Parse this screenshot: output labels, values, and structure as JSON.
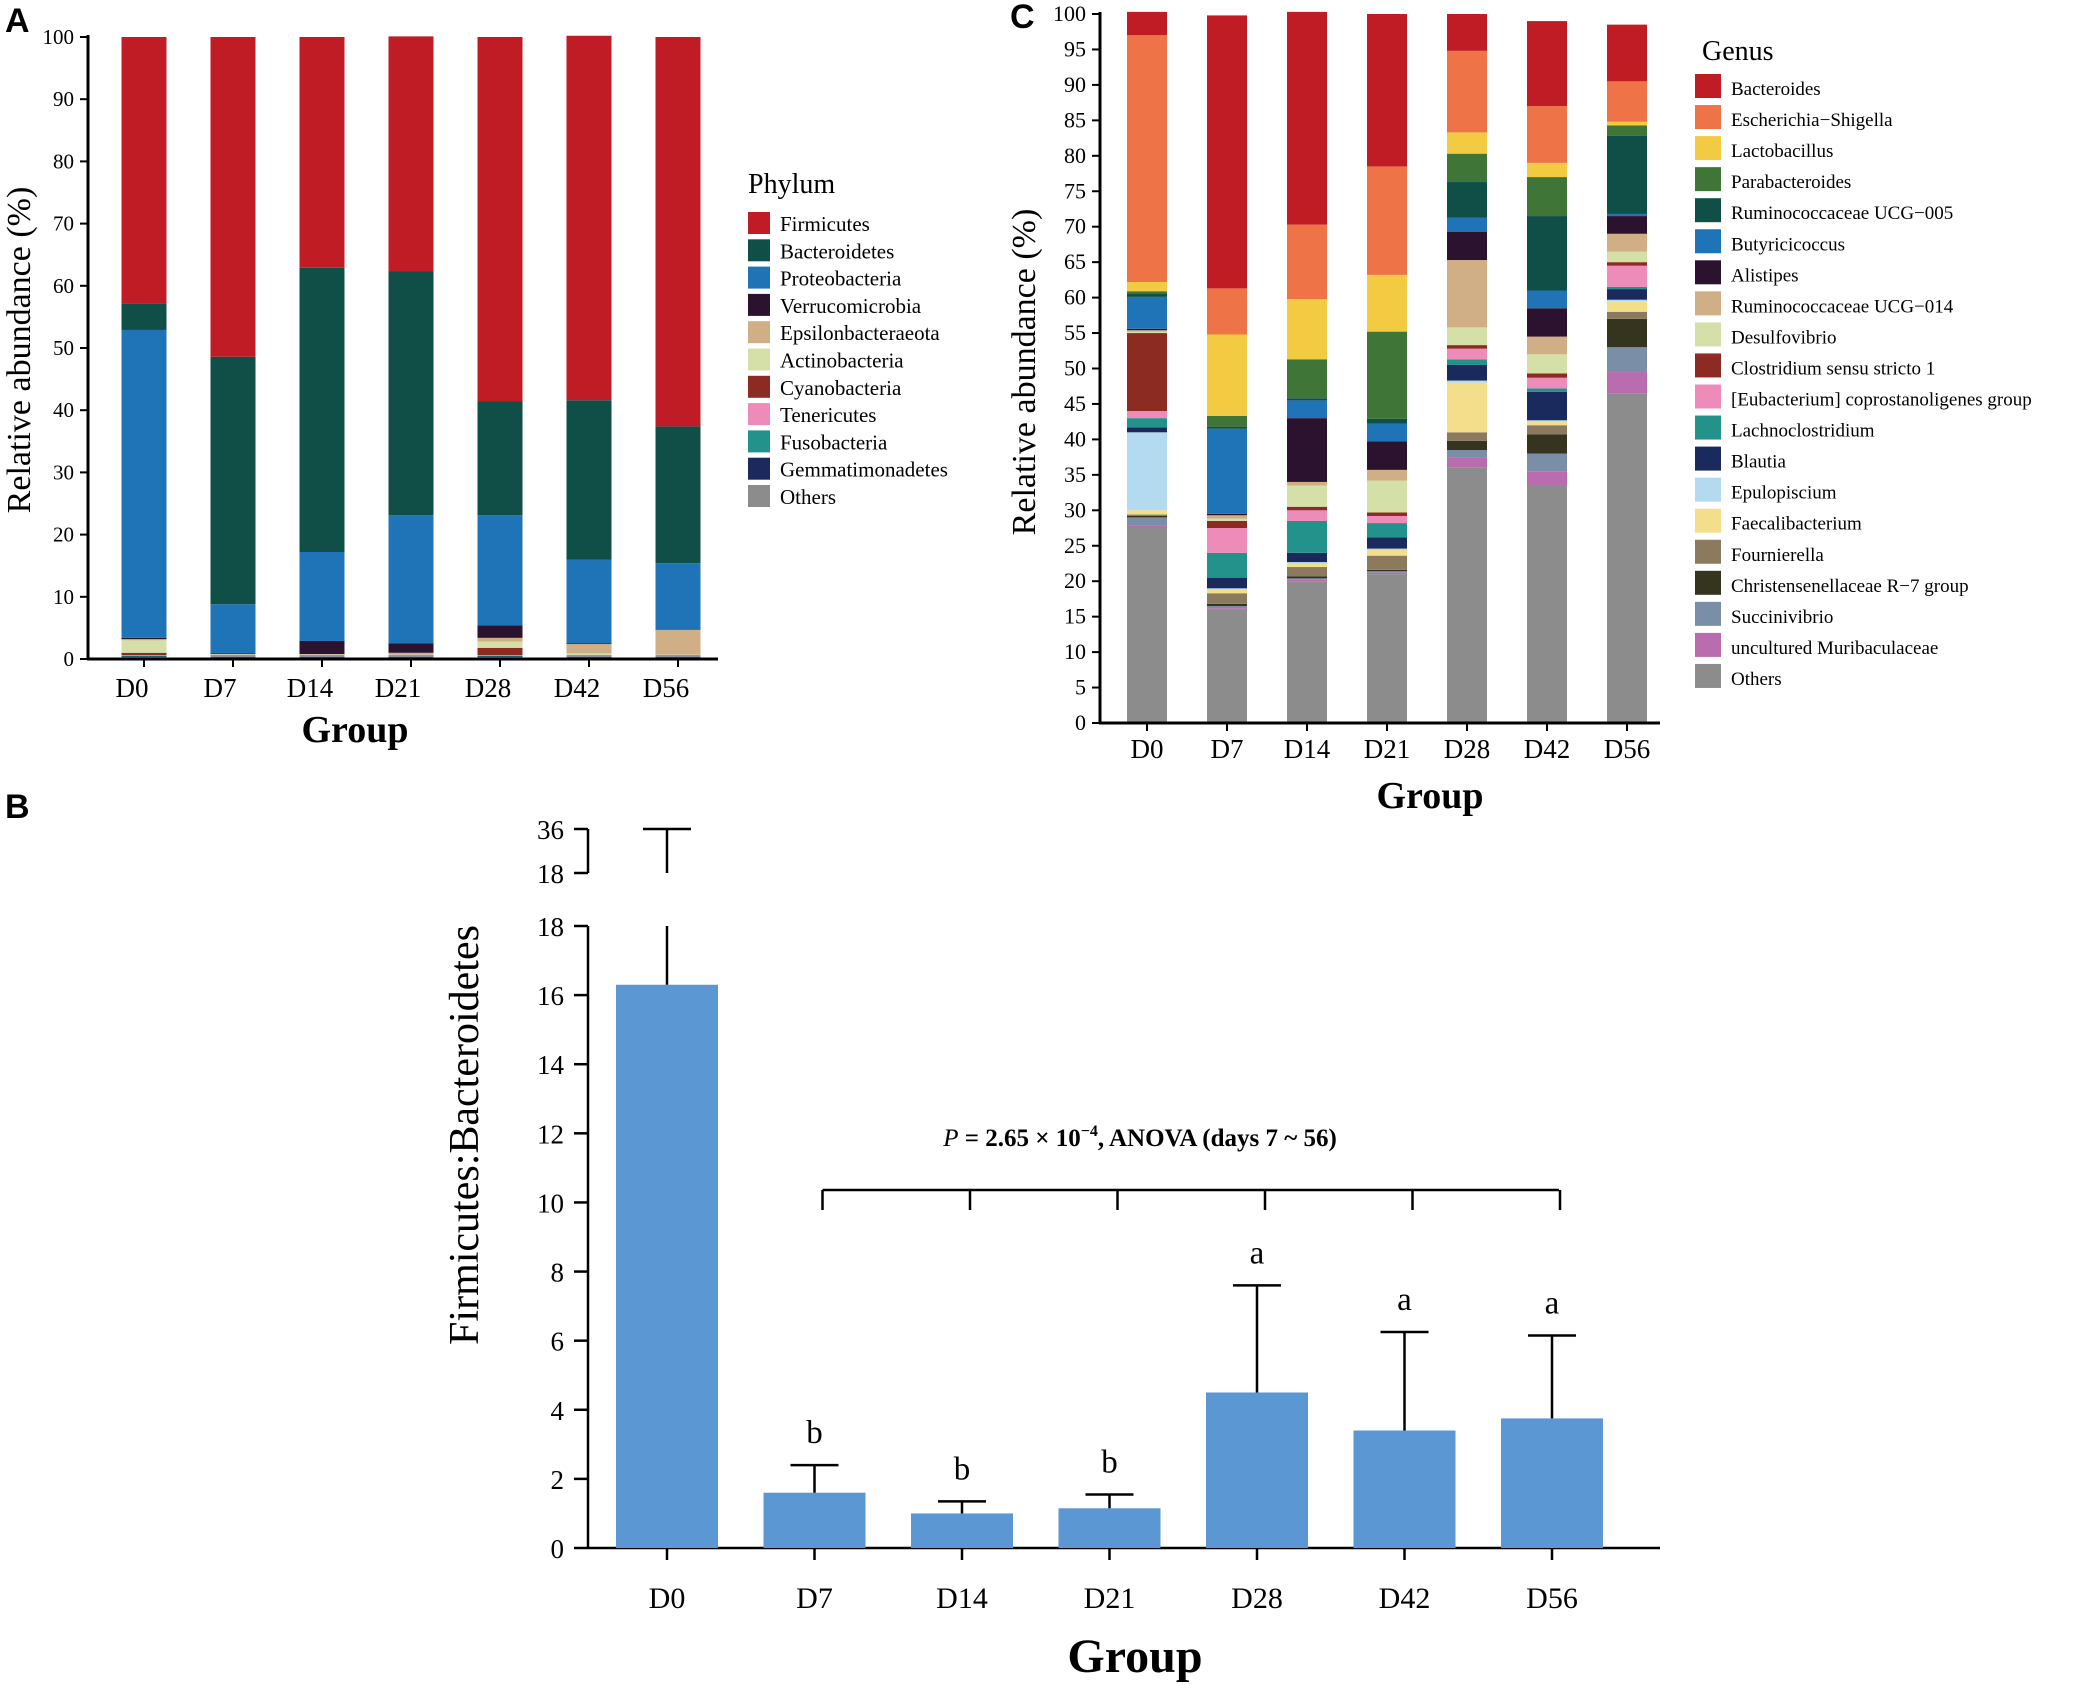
{
  "colors": {
    "bar_b": "#5b97d2",
    "palette_a": [
      "#c01c25",
      "#0f4f47",
      "#1f74b8",
      "#2b1330",
      "#d0ae86",
      "#d4e0a8",
      "#8b2b22",
      "#ed8cb8",
      "#23928a",
      "#1b2a5c",
      "#8c8c8c"
    ],
    "palette_c": [
      "#c01c25",
      "#ee7448",
      "#f2cb42",
      "#3f7536",
      "#0f4f47",
      "#1f74b8",
      "#2b1330",
      "#d0ae86",
      "#d4e0a8",
      "#8b2b22",
      "#ed8cb8",
      "#23928a",
      "#1b2a5c",
      "#b3daef",
      "#f3de8c",
      "#8b7a5e",
      "#34341f",
      "#7a8ea8",
      "#b96cae",
      "#8c8c8c"
    ]
  },
  "panels": {
    "a": {
      "letter": "A"
    },
    "b": {
      "letter": "B"
    },
    "c": {
      "letter": "C"
    }
  },
  "chart_data": [
    {
      "id": "A",
      "type": "bar",
      "stacked": true,
      "title": "",
      "xlabel": "Group",
      "ylabel": "Relative abundance (%)",
      "ylim": [
        0,
        100
      ],
      "yticks": [
        "0",
        "10",
        "20",
        "30",
        "40",
        "50",
        "60",
        "70",
        "80",
        "90",
        "100"
      ],
      "categories": [
        "D0",
        "D7",
        "D14",
        "D21",
        "D28",
        "D42",
        "D56"
      ],
      "legend_title": "Phylum",
      "legend_position": "right",
      "series": [
        {
          "name": "Others",
          "values": [
            0.3,
            0.2,
            0.2,
            0.2,
            0.3,
            0.2,
            0.2
          ]
        },
        {
          "name": "Gemmatimonadetes",
          "values": [
            0.1,
            0.1,
            0.1,
            0.1,
            0.1,
            0.1,
            0.1
          ]
        },
        {
          "name": "Fusobacteria",
          "values": [
            0.1,
            0.1,
            0.1,
            0.1,
            0.1,
            0.1,
            0.1
          ]
        },
        {
          "name": "Tenericutes",
          "values": [
            0.1,
            0.1,
            0.1,
            0.1,
            0.1,
            0.1,
            0.1
          ]
        },
        {
          "name": "Cyanobacteria",
          "values": [
            0.4,
            0.1,
            0.1,
            0.1,
            1.2,
            0.1,
            0.1
          ]
        },
        {
          "name": "Actinobacteria",
          "values": [
            2.0,
            0.1,
            0.1,
            0.1,
            1.0,
            0.3,
            0.1
          ]
        },
        {
          "name": "Epsilonbacteraeota",
          "values": [
            0.2,
            0.1,
            0.1,
            0.3,
            0.6,
            1.5,
            4.0
          ]
        },
        {
          "name": "Verrucomicrobia",
          "values": [
            0.2,
            0.1,
            2.1,
            1.5,
            2.0,
            0.1,
            0.1
          ]
        },
        {
          "name": "Proteobacteria",
          "values": [
            49.5,
            7.9,
            14.3,
            20.6,
            17.7,
            13.5,
            10.6
          ]
        },
        {
          "name": "Bacteroidetes",
          "values": [
            4.3,
            39.8,
            45.7,
            39.2,
            18.3,
            25.6,
            22.0
          ]
        },
        {
          "name": "Firmicutes",
          "values": [
            42.8,
            51.4,
            37.1,
            37.8,
            58.6,
            58.6,
            62.6
          ]
        }
      ]
    },
    {
      "id": "C",
      "type": "bar",
      "stacked": true,
      "title": "",
      "xlabel": "Group",
      "ylabel": "Relative abundance (%)",
      "ylim": [
        0,
        100
      ],
      "yticks": [
        "0",
        "5",
        "10",
        "15",
        "20",
        "25",
        "30",
        "35",
        "40",
        "45",
        "50",
        "55",
        "60",
        "65",
        "70",
        "75",
        "80",
        "85",
        "90",
        "95",
        "100"
      ],
      "categories": [
        "D0",
        "D7",
        "D14",
        "D21",
        "D28",
        "D42",
        "D56"
      ],
      "legend_title": "Genus",
      "legend_position": "right",
      "series": [
        {
          "name": "Others",
          "values": [
            27.5,
            16.0,
            20.0,
            21.0,
            36.0,
            33.5,
            46.5
          ]
        },
        {
          "name": "uncultured Muribaculaceae",
          "values": [
            0.3,
            0.2,
            0.2,
            0.2,
            1.5,
            2.0,
            3.0
          ]
        },
        {
          "name": "Succinivibrio",
          "values": [
            1.2,
            0.3,
            0.2,
            0.2,
            1.0,
            2.5,
            3.5
          ]
        },
        {
          "name": "Christensenellaceae R−7 group",
          "values": [
            0.2,
            0.3,
            0.3,
            0.2,
            1.3,
            2.7,
            4.0
          ]
        },
        {
          "name": "Fournierella",
          "values": [
            0.2,
            1.5,
            1.3,
            2.0,
            1.2,
            1.3,
            1.0
          ]
        },
        {
          "name": "Faecalibacterium",
          "values": [
            0.6,
            0.5,
            0.5,
            0.8,
            7.0,
            0.5,
            1.5
          ]
        },
        {
          "name": "Epulopiscium",
          "values": [
            11.0,
            0.2,
            0.2,
            0.2,
            0.3,
            0.2,
            0.2
          ]
        },
        {
          "name": "Blautia",
          "values": [
            0.7,
            1.5,
            1.3,
            1.6,
            2.2,
            4.0,
            1.5
          ]
        },
        {
          "name": "Lachnoclostridium",
          "values": [
            1.3,
            3.5,
            4.5,
            2.0,
            0.8,
            0.5,
            0.3
          ]
        },
        {
          "name": "[Eubacterium] coprostanoligenes group",
          "values": [
            1.0,
            3.5,
            1.5,
            1.0,
            1.5,
            1.5,
            3.0
          ]
        },
        {
          "name": "Clostridium sensu stricto 1",
          "values": [
            11.0,
            1.0,
            0.5,
            0.5,
            0.5,
            0.6,
            0.5
          ]
        },
        {
          "name": "Desulfovibrio",
          "values": [
            0.2,
            0.3,
            3.0,
            4.5,
            2.5,
            2.7,
            1.5
          ]
        },
        {
          "name": "Ruminococcaceae UCG−014",
          "values": [
            0.2,
            0.5,
            0.5,
            1.5,
            9.5,
            2.5,
            2.5
          ]
        },
        {
          "name": "Alistipes",
          "values": [
            0.2,
            0.2,
            9.0,
            4.0,
            4.0,
            4.0,
            2.5
          ]
        },
        {
          "name": "Butyricicoccus",
          "values": [
            4.5,
            12.0,
            2.5,
            2.5,
            2.0,
            2.5,
            0.3
          ]
        },
        {
          "name": "Ruminococcaceae UCG−005",
          "values": [
            0.5,
            0.3,
            0.3,
            0.7,
            5.0,
            10.5,
            11.0
          ]
        },
        {
          "name": "Parabacteroides",
          "values": [
            0.3,
            1.5,
            5.5,
            12.3,
            4.0,
            5.5,
            1.5
          ]
        },
        {
          "name": "Lactobacillus",
          "values": [
            1.3,
            11.5,
            8.5,
            8.0,
            3.0,
            2.0,
            0.5
          ]
        },
        {
          "name": "Escherichia−Shigella",
          "values": [
            34.8,
            6.5,
            10.5,
            15.3,
            11.5,
            8.0,
            5.7
          ]
        },
        {
          "name": "Bacteroides",
          "values": [
            3.3,
            38.5,
            30.0,
            21.5,
            5.2,
            12.0,
            8.0
          ]
        }
      ]
    },
    {
      "id": "B",
      "type": "bar",
      "title": "",
      "xlabel": "Group",
      "ylabel": "Firmicutes:Bacteroidetes",
      "ylim": [
        0,
        18
      ],
      "yticks": [
        "0",
        "2",
        "4",
        "6",
        "8",
        "10",
        "12",
        "14",
        "16",
        "18"
      ],
      "broken_axis_ticks": [
        "18",
        "36"
      ],
      "categories": [
        "D0",
        "D7",
        "D14",
        "D21",
        "D28",
        "D42",
        "D56"
      ],
      "values": [
        16.3,
        1.6,
        1.0,
        1.15,
        4.5,
        3.4,
        3.75
      ],
      "error_upper": [
        36,
        2.4,
        1.35,
        1.55,
        7.6,
        6.25,
        6.15
      ],
      "significance": [
        "",
        "b",
        "b",
        "b",
        "a",
        "a",
        "a"
      ],
      "annotation": {
        "p_symbol": "P",
        "text_before": " = 2.65 × 10",
        "exponent": "−4",
        "text_after": ",  ANOVA  (days 7 ~ 56)"
      }
    }
  ]
}
